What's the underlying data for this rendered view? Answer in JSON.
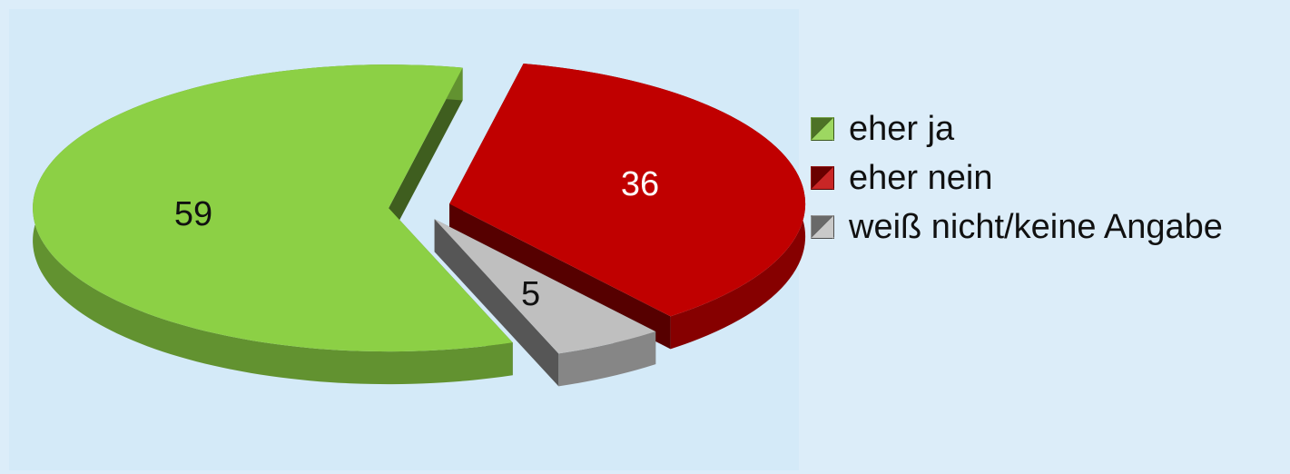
{
  "chart_data": {
    "type": "pie",
    "style": "3d-exploded",
    "categories": [
      "eher ja",
      "eher nein",
      "weiß nicht/keine Angabe"
    ],
    "values": [
      59,
      36,
      5
    ],
    "data_labels": [
      "59",
      "36",
      "5"
    ],
    "colors": [
      "#8cd045",
      "#c00000",
      "#bfbfbf"
    ],
    "legend": {
      "placement": "right",
      "entries": [
        "eher ja",
        "eher nein",
        "weiß nicht/keine Angabe"
      ]
    },
    "title": "",
    "grid": false
  }
}
